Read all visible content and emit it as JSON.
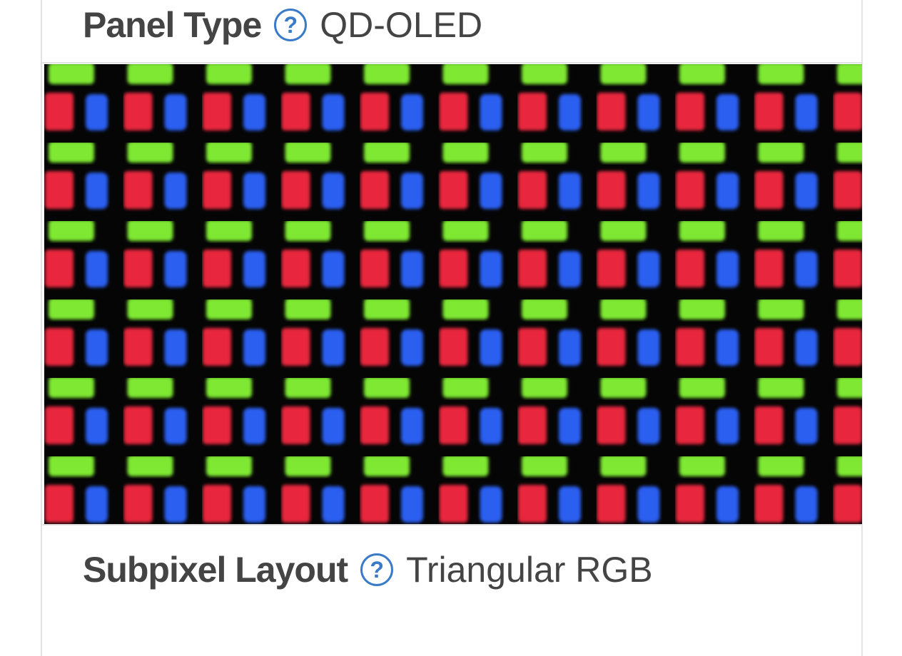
{
  "panel_type": {
    "label": "Panel Type",
    "help_icon": "question-circle-icon",
    "value": "QD-OLED"
  },
  "subpixel_image": {
    "description_colors": {
      "red": "#e8283c",
      "green": "#7ee832",
      "blue": "#2a5ef0"
    }
  },
  "subpixel_layout": {
    "label": "Subpixel Layout",
    "help_icon": "question-circle-icon",
    "value": "Triangular RGB"
  },
  "accent_color": "#3a7bc8"
}
